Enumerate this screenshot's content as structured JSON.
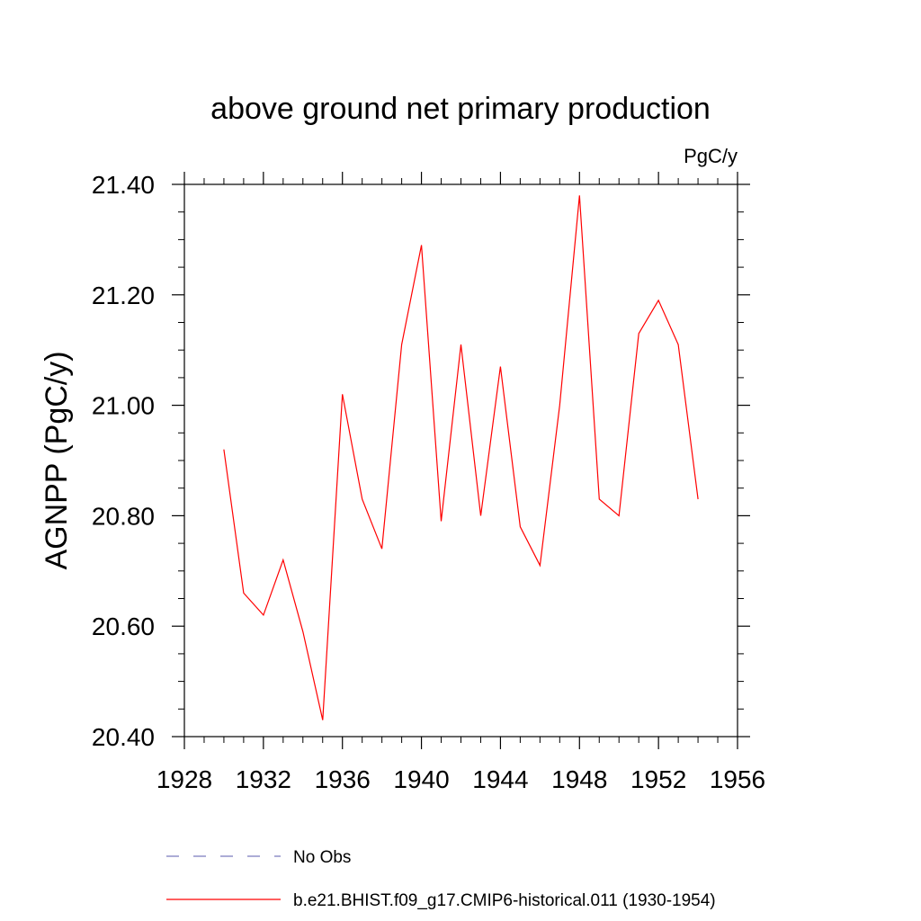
{
  "chart_data": {
    "type": "line",
    "title": "above ground net primary production",
    "units_label": "PgC/y",
    "ylabel": "AGNPP  (PgC/y)",
    "xlabel": "",
    "xlim": [
      1928,
      1956
    ],
    "ylim": [
      20.4,
      21.4
    ],
    "x_ticks": [
      1928,
      1932,
      1936,
      1940,
      1944,
      1948,
      1952,
      1956
    ],
    "x_tick_labels": [
      "1928",
      "1932",
      "1936",
      "1940",
      "1944",
      "1948",
      "1952",
      "1956"
    ],
    "y_ticks": [
      20.4,
      20.6,
      20.8,
      21.0,
      21.2,
      21.4
    ],
    "y_tick_labels": [
      "20.40",
      "20.60",
      "20.80",
      "21.00",
      "21.20",
      "21.40"
    ],
    "grid": false,
    "legend_placement": "bottom",
    "series": [
      {
        "name": "No Obs",
        "color": "#7b7bbd",
        "dash": true,
        "x": [],
        "y": []
      },
      {
        "name": "b.e21.BHIST.f09_g17.CMIP6-historical.011 (1930-1954)",
        "color": "#ff0000",
        "dash": false,
        "x": [
          1930,
          1931,
          1932,
          1933,
          1934,
          1935,
          1936,
          1937,
          1938,
          1939,
          1940,
          1941,
          1942,
          1943,
          1944,
          1945,
          1946,
          1947,
          1948,
          1949,
          1950,
          1951,
          1952,
          1953,
          1954
        ],
        "y": [
          20.92,
          20.66,
          20.62,
          20.72,
          20.59,
          20.43,
          21.02,
          20.83,
          20.74,
          21.11,
          21.29,
          20.79,
          21.11,
          20.8,
          21.07,
          20.78,
          20.71,
          21.0,
          21.38,
          20.83,
          20.8,
          21.13,
          21.19,
          21.11,
          20.83
        ]
      }
    ]
  }
}
